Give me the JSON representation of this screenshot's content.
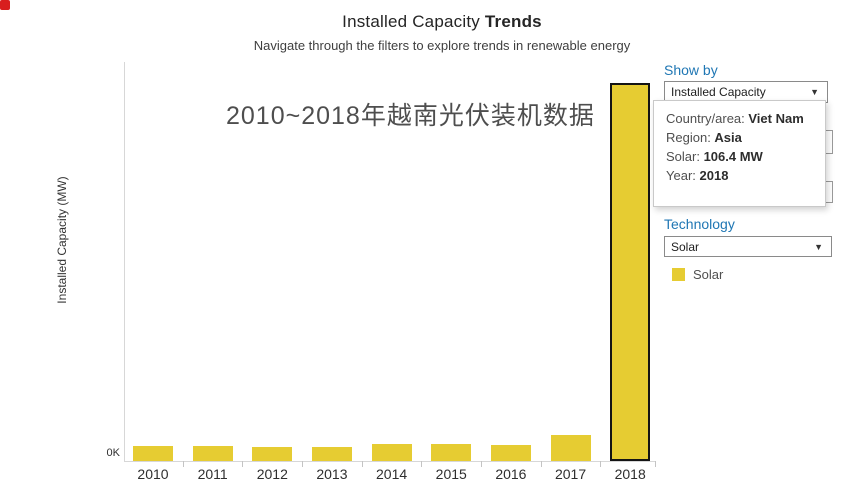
{
  "header": {
    "title_regular": "Installed Capacity ",
    "title_bold": "Trends",
    "subtitle": "Navigate through the filters to explore trends in renewable energy"
  },
  "chart_annotation": "2010~2018年越南光伏装机数据",
  "chart_data": {
    "type": "bar",
    "title": "Installed Capacity Trends",
    "categories": [
      "2010",
      "2011",
      "2012",
      "2013",
      "2014",
      "2015",
      "2016",
      "2017",
      "2018"
    ],
    "values": [
      4.2,
      4.2,
      4.0,
      4.0,
      4.7,
      4.7,
      4.5,
      7.3,
      106.4
    ],
    "unit": "MW",
    "series_name": "Solar",
    "xlabel": "",
    "ylabel": "Installed Capacity (MW)",
    "y_axis_tick_label": "0K",
    "ylim": [
      0,
      107
    ],
    "grid": false,
    "bar_color": "#e6cc32",
    "selected_category": "2018",
    "selected_border_color": "#141414",
    "legend_position": "right"
  },
  "tooltip": {
    "lines": [
      {
        "label": "Country/area: ",
        "value": "Viet Nam"
      },
      {
        "label": "Region: ",
        "value": "Asia"
      },
      {
        "label": "Solar: ",
        "value": "106.4 MW"
      },
      {
        "label": "Year: ",
        "value": "2018"
      }
    ]
  },
  "filters": {
    "show_by": {
      "label": "Show by",
      "value": "Installed Capacity"
    },
    "technology": {
      "label": "Technology",
      "value": "Solar"
    }
  },
  "legend": {
    "items": [
      {
        "label": "Solar",
        "color": "#e6cc32"
      }
    ]
  },
  "colors": {
    "accent_blue": "#2077b4",
    "bar_yellow": "#e6cc32",
    "axis_gray": "#d7d7d7"
  }
}
